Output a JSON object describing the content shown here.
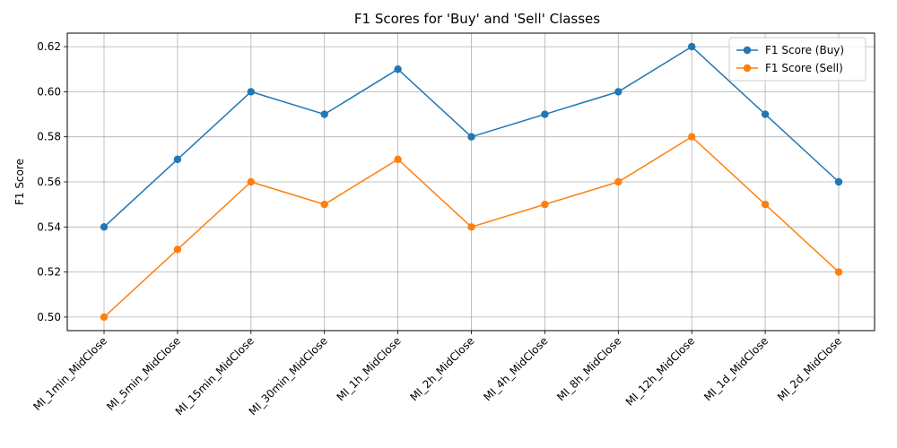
{
  "chart_data": {
    "type": "line",
    "title": "F1 Scores for 'Buy' and 'Sell' Classes",
    "xlabel": "",
    "ylabel": "F1 Score",
    "categories": [
      "MI_1min_MidClose",
      "MI_5min_MidClose",
      "MI_15min_MidClose",
      "MI_30min_MidClose",
      "MI_1h_MidClose",
      "MI_2h_MidClose",
      "MI_4h_MidClose",
      "MI_8h_MidClose",
      "MI_12h_MidClose",
      "MI_1d_MidClose",
      "MI_2d_MidClose"
    ],
    "series": [
      {
        "name": "F1 Score (Buy)",
        "color": "#1f77b4",
        "values": [
          0.54,
          0.57,
          0.6,
          0.59,
          0.61,
          0.58,
          0.59,
          0.6,
          0.62,
          0.59,
          0.56
        ]
      },
      {
        "name": "F1 Score (Sell)",
        "color": "#ff7f0e",
        "values": [
          0.5,
          0.53,
          0.56,
          0.55,
          0.57,
          0.54,
          0.55,
          0.56,
          0.58,
          0.55,
          0.52
        ]
      }
    ],
    "ylim": [
      0.494,
      0.626
    ],
    "yticks": [
      0.5,
      0.52,
      0.54,
      0.56,
      0.58,
      0.6,
      0.62
    ],
    "grid": true,
    "legend": "top-right"
  }
}
